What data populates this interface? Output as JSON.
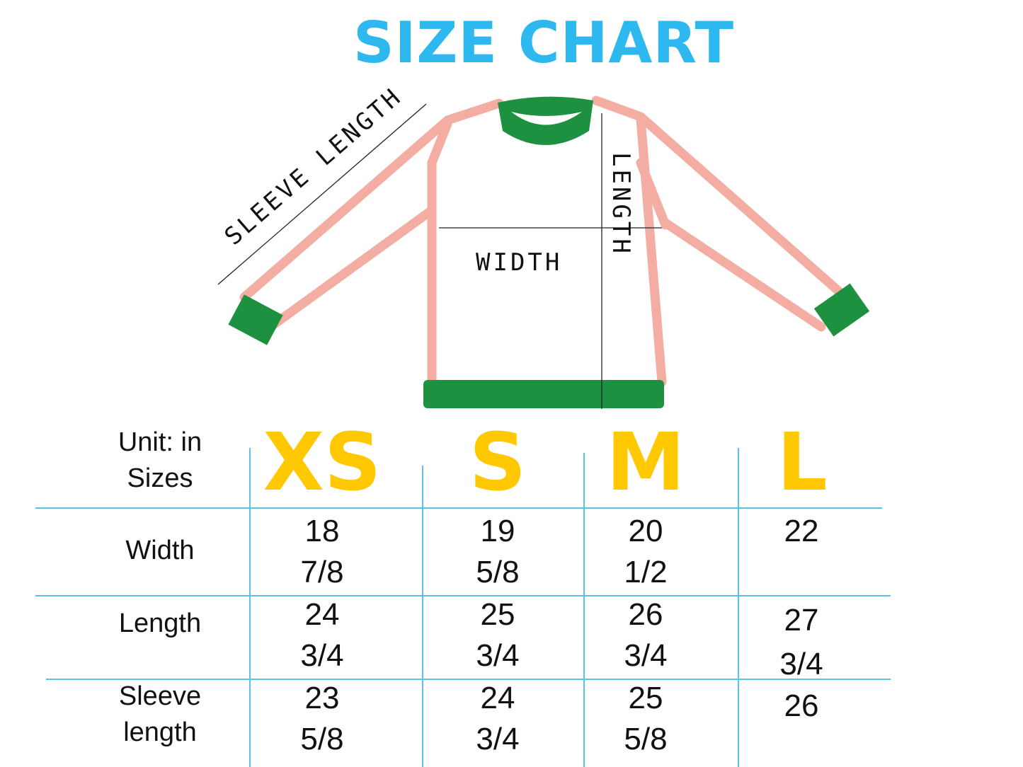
{
  "title": "SIZE CHART",
  "diagram": {
    "labels": {
      "sleeve_length": "SLEEVE LENGTH",
      "width": "WIDTH",
      "length": "LENGTH"
    },
    "colors": {
      "body_outline": "#F4ADA3",
      "trim": "#1E9140",
      "title": "#2DB8F0"
    }
  },
  "table": {
    "unit_label": "Unit: in",
    "sizes_label": "Sizes",
    "size_color": "#FFC800",
    "sizes": [
      "XS",
      "S",
      "M",
      "L"
    ],
    "rows": [
      {
        "label": "Width",
        "values": [
          [
            "18",
            "7/8"
          ],
          [
            "19",
            "5/8"
          ],
          [
            "20",
            "1/2"
          ],
          [
            "22",
            ""
          ]
        ]
      },
      {
        "label": "Length",
        "values": [
          [
            "24",
            "3/4"
          ],
          [
            "25",
            "3/4"
          ],
          [
            "26",
            "3/4"
          ],
          [
            "27",
            "3/4"
          ]
        ]
      },
      {
        "label_lines": [
          "Sleeve",
          "length"
        ],
        "values": [
          [
            "23",
            "5/8"
          ],
          [
            "24",
            "3/4"
          ],
          [
            "25",
            "5/8"
          ],
          [
            "26",
            ""
          ]
        ]
      }
    ]
  }
}
